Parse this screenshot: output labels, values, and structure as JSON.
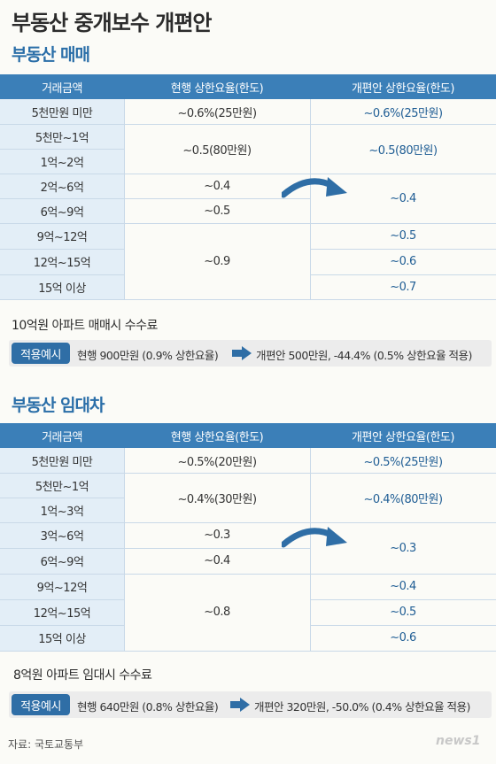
{
  "title": "부동산 중개보수 개편안",
  "sale": {
    "section_title": "부동산 매매",
    "headers": [
      "거래금액",
      "현행 상한요율(한도)",
      "개편안 상한요율(한도)"
    ],
    "amounts": [
      "5천만원 미만",
      "5천만~1억",
      "1억~2억",
      "2억~6억",
      "6억~9억",
      "9억~12억",
      "12억~15억",
      "15억 이상"
    ],
    "current": [
      "~0.6%(25만원)",
      "~0.5(80만원)",
      "~0.4",
      "~0.5",
      "~0.9"
    ],
    "proposed": [
      "~0.6%(25만원)",
      "~0.5(80만원)",
      "~0.4",
      "~0.5",
      "~0.6",
      "~0.7"
    ],
    "example_title": "10억원 아파트 매매시 수수료",
    "example_badge": "적용예시",
    "example_current": "현행 900만원 (0.9% 상한요율)",
    "example_proposed": "개편안 500만원, -44.4% (0.5% 상한요율 적용)"
  },
  "lease": {
    "section_title": "부동산 임대차",
    "headers": [
      "거래금액",
      "현행 상한요율(한도)",
      "개편안 상한요율(한도)"
    ],
    "amounts": [
      "5천만원 미만",
      "5천만~1억",
      "1억~3억",
      "3억~6억",
      "6억~9억",
      "9억~12억",
      "12억~15억",
      "15억 이상"
    ],
    "current": [
      "~0.5%(20만원)",
      "~0.4%(30만원)",
      "~0.3",
      "~0.4",
      "~0.8"
    ],
    "proposed": [
      "~0.5%(25만원)",
      "~0.4%(80만원)",
      "~0.3",
      "~0.4",
      "~0.5",
      "~0.6"
    ],
    "example_title": "8억원 아파트 임대시 수수료",
    "example_badge": "적용예시",
    "example_current": "현행 640만원 (0.8% 상한요율)",
    "example_proposed": "개편안 320만원, -50.0% (0.4% 상한요율 적용)"
  },
  "source": "자료: 국토교통부",
  "logo": "news1"
}
